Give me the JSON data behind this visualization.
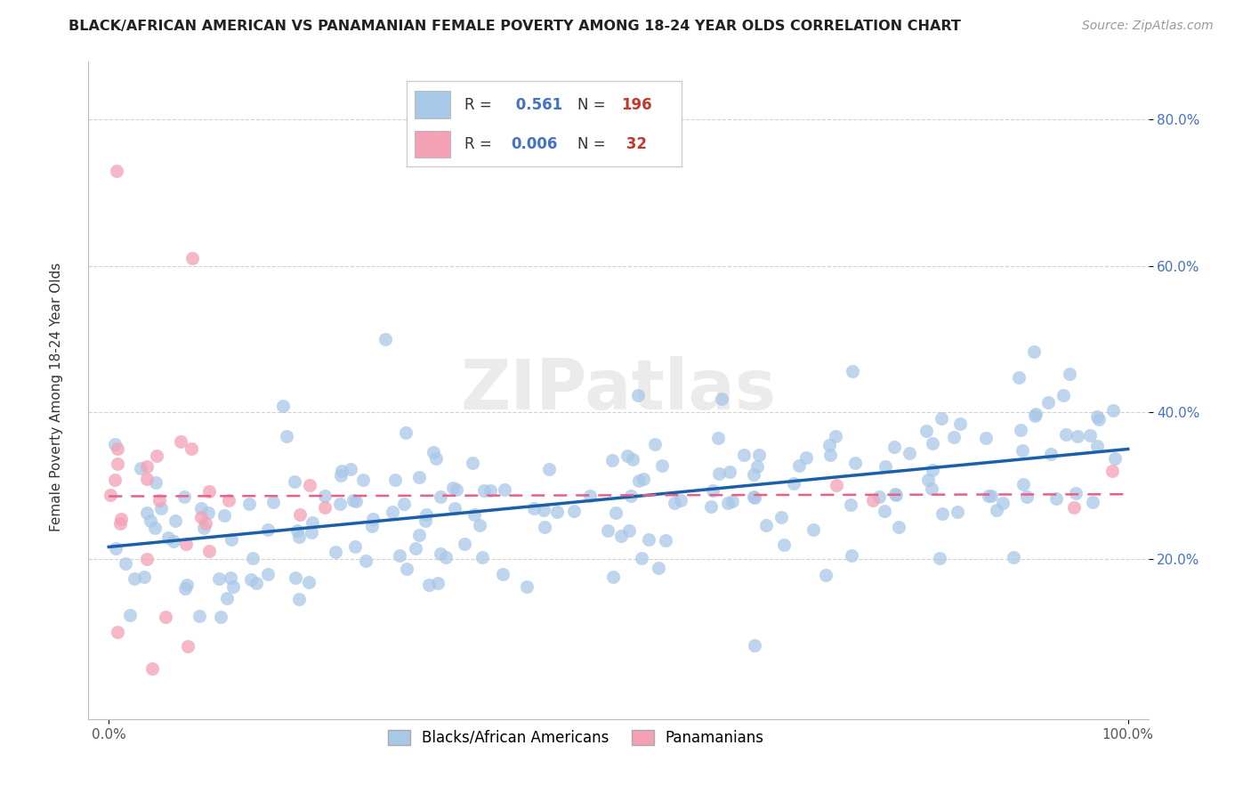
{
  "title": "BLACK/AFRICAN AMERICAN VS PANAMANIAN FEMALE POVERTY AMONG 18-24 YEAR OLDS CORRELATION CHART",
  "source": "Source: ZipAtlas.com",
  "ylabel": "Female Poverty Among 18-24 Year Olds",
  "watermark": "ZIPatlas",
  "blue_R": 0.561,
  "blue_N": 196,
  "pink_R": 0.006,
  "pink_N": 32,
  "blue_color": "#a8c8e8",
  "pink_color": "#f4a0b5",
  "blue_line_color": "#1a5fa8",
  "pink_line_color": "#e8608a",
  "legend_label_blue": "Blacks/African Americans",
  "legend_label_pink": "Panamanians",
  "xlim": [
    -0.02,
    1.02
  ],
  "ylim": [
    -0.02,
    0.88
  ],
  "seed": 42
}
